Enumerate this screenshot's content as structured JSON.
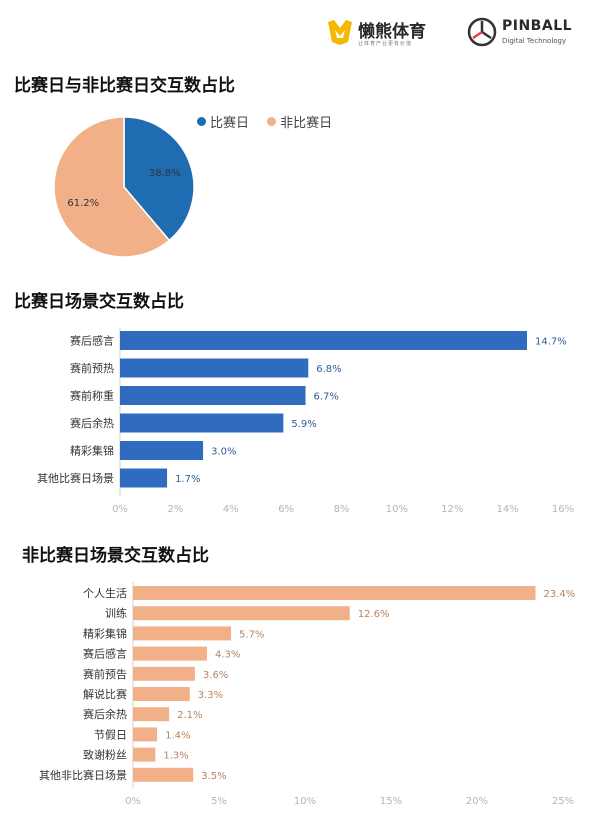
{
  "header": {
    "logo1_name": "懒熊体育",
    "logo1_sub": "让体育产业更有价值",
    "logo2_name": "PINBALL",
    "logo2_sub": "Digital Technology"
  },
  "colors": {
    "blue": "#2f6cc0",
    "orange": "#f2b089",
    "pie_blue": "#1f6cb3",
    "pie_orange": "#f2b089"
  },
  "chart_data": [
    {
      "type": "pie",
      "title": "比赛日与非比赛日交互数占比",
      "legend": [
        "比赛日",
        "非比赛日"
      ],
      "values": [
        38.8,
        61.2
      ],
      "labels": [
        "38.8%",
        "61.2%"
      ]
    },
    {
      "type": "bar",
      "orientation": "horizontal",
      "title": "比赛日场景交互数占比",
      "categories": [
        "赛后感言",
        "赛前预热",
        "赛前称重",
        "赛后余热",
        "精彩集锦",
        "其他比赛日场景"
      ],
      "values": [
        14.7,
        6.8,
        6.7,
        5.9,
        3.0,
        1.7
      ],
      "value_labels": [
        "14.7%",
        "6.8%",
        "6.7%",
        "5.9%",
        "3.0%",
        "1.7%"
      ],
      "xlim": [
        0,
        16
      ],
      "xticks": [
        "0%",
        "2%",
        "4%",
        "6%",
        "8%",
        "10%",
        "12%",
        "14%",
        "16%"
      ]
    },
    {
      "type": "bar",
      "orientation": "horizontal",
      "title": "非比赛日场景交互数占比",
      "categories": [
        "个人生活",
        "训练",
        "精彩集锦",
        "赛后感言",
        "赛前预告",
        "解说比赛",
        "赛后余热",
        "节假日",
        "致谢粉丝",
        "其他非比赛日场景"
      ],
      "values": [
        23.4,
        12.6,
        5.7,
        4.3,
        3.6,
        3.3,
        2.1,
        1.4,
        1.3,
        3.5
      ],
      "value_labels": [
        "23.4%",
        "12.6%",
        "5.7%",
        "4.3%",
        "3.6%",
        "3.3%",
        "2.1%",
        "1.4%",
        "1.3%",
        "3.5%"
      ],
      "xlim": [
        0,
        25
      ],
      "xticks": [
        "0%",
        "5%",
        "10%",
        "15%",
        "20%",
        "25%"
      ]
    }
  ]
}
